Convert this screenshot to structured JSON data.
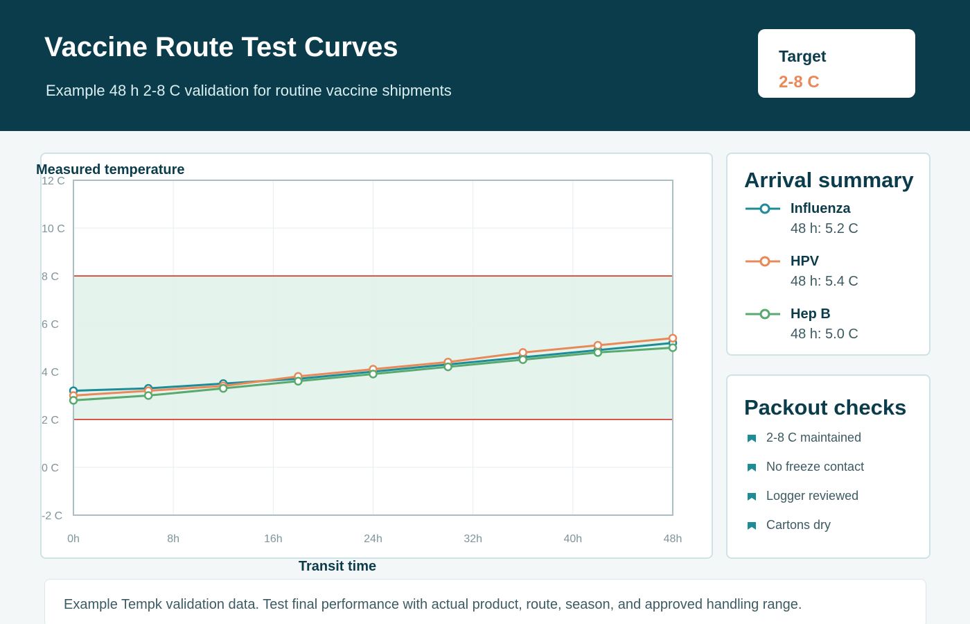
{
  "header": {
    "title": "Vaccine Route Test Curves",
    "subtitle": "Example 48 h 2-8 C validation for routine vaccine shipments",
    "target_label": "Target",
    "target_value": "2-8 C"
  },
  "colors": {
    "header_bg": "#0b3c4b",
    "accent_orange": "#e8895a",
    "influenza": "#1e8c96",
    "hpv": "#e8895a",
    "hepb": "#5aa96e",
    "limit_line": "#d9574a",
    "band_fill": "#e4f4ec"
  },
  "chart_data": {
    "type": "line",
    "title": "Measured temperature",
    "xlabel": "Transit time",
    "ylabel": "Measured temperature",
    "x": [
      0,
      6,
      12,
      18,
      24,
      30,
      36,
      42,
      48
    ],
    "xlim": [
      0,
      48
    ],
    "ylim": [
      -2,
      12
    ],
    "x_ticks": [
      0,
      8,
      16,
      24,
      32,
      40,
      48
    ],
    "x_tick_labels": [
      "0h",
      "8h",
      "16h",
      "24h",
      "32h",
      "40h",
      "48h"
    ],
    "y_ticks": [
      -2,
      0,
      2,
      4,
      6,
      8,
      10,
      12
    ],
    "y_tick_labels": [
      "-2 C",
      "0 C",
      "2 C",
      "4 C",
      "6 C",
      "8 C",
      "10 C",
      "12 C"
    ],
    "target_band": [
      2,
      8
    ],
    "grid": true,
    "legend": "right",
    "series": [
      {
        "name": "Influenza",
        "color": "#1e8c96",
        "values": [
          3.2,
          3.3,
          3.5,
          3.7,
          4.0,
          4.3,
          4.6,
          4.9,
          5.2
        ]
      },
      {
        "name": "HPV",
        "color": "#e8895a",
        "values": [
          3.0,
          3.2,
          3.4,
          3.8,
          4.1,
          4.4,
          4.8,
          5.1,
          5.4
        ]
      },
      {
        "name": "Hep B",
        "color": "#5aa96e",
        "values": [
          2.8,
          3.0,
          3.3,
          3.6,
          3.9,
          4.2,
          4.5,
          4.8,
          5.0
        ]
      }
    ]
  },
  "summary": {
    "title": "Arrival summary",
    "items": [
      {
        "name": "Influenza",
        "value": "48 h: 5.2 C"
      },
      {
        "name": "HPV",
        "value": "48 h: 5.4 C"
      },
      {
        "name": "Hep B",
        "value": "48 h: 5.0 C"
      }
    ]
  },
  "checks": {
    "title": "Packout checks",
    "items": [
      "2-8 C maintained",
      "No freeze contact",
      "Logger reviewed",
      "Cartons dry"
    ]
  },
  "footer": {
    "text": "Example Tempk validation data. Test final performance with actual product, route, season, and approved handling range."
  }
}
